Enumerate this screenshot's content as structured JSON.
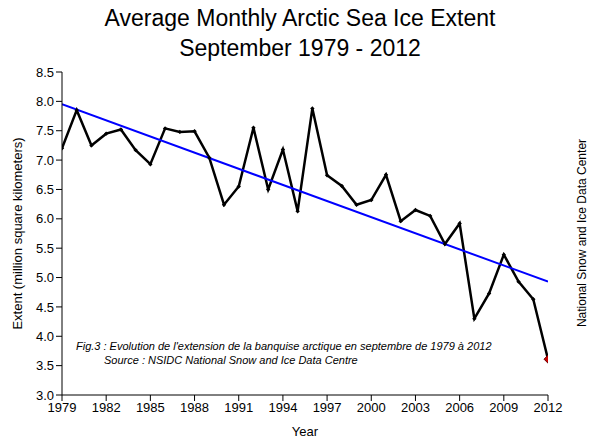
{
  "chart_data": {
    "type": "line",
    "title": "Average Monthly Arctic Sea Ice Extent",
    "subtitle": "September 1979 - 2012",
    "x_label": "Year",
    "y_label": "Extent (million square kilometers)",
    "annotations": [
      "Fig.3 : Evolution de l'extension de la banquise arctique en septembre de 1979 à 2012",
      "Source : NSIDC National Snow and Ice Data Centre",
      "National Snow and Ice Data Center"
    ],
    "x": [
      1979,
      1980,
      1981,
      1982,
      1983,
      1984,
      1985,
      1986,
      1987,
      1988,
      1989,
      1990,
      1991,
      1992,
      1993,
      1994,
      1995,
      1996,
      1997,
      1998,
      1999,
      2000,
      2001,
      2002,
      2003,
      2004,
      2005,
      2006,
      2007,
      2008,
      2009,
      2010,
      2011,
      2012
    ],
    "series": [
      {
        "color": "#000000",
        "marker": "diamond",
        "colors": [
          "#000000",
          "#000000",
          "#000000",
          "#000000",
          "#000000",
          "#000000",
          "#000000",
          "#000000",
          "#000000",
          "#000000",
          "#000000",
          "#000000",
          "#000000",
          "#000000",
          "#000000",
          "#000000",
          "#000000",
          "#000000",
          "#000000",
          "#000000",
          "#000000",
          "#000000",
          "#000000",
          "#000000",
          "#000000",
          "#000000",
          "#000000",
          "#000000",
          "#000000",
          "#000000",
          "#000000",
          "#000000",
          "#000000",
          "#cc0000"
        ],
        "values": [
          7.2,
          7.85,
          7.25,
          7.45,
          7.52,
          7.17,
          6.93,
          7.54,
          7.48,
          7.49,
          7.04,
          6.24,
          6.55,
          7.55,
          6.5,
          7.18,
          6.13,
          7.88,
          6.74,
          6.56,
          6.24,
          6.32,
          6.75,
          5.96,
          6.15,
          6.05,
          5.57,
          5.92,
          4.3,
          4.73,
          5.39,
          4.93,
          4.63,
          3.61
        ]
      },
      {
        "color": "#0000ff",
        "marker": "none",
        "x": [
          1979,
          2012
        ],
        "values": [
          7.95,
          4.93
        ]
      }
    ],
    "xlim": [
      1979,
      2012
    ],
    "xticks": [
      1979,
      1982,
      1985,
      1988,
      1991,
      1994,
      1997,
      2000,
      2003,
      2006,
      2009,
      2012
    ],
    "ylim": [
      3,
      8.5
    ],
    "yticks": [
      {
        "value": 3,
        "label": "3.0"
      },
      3.5,
      {
        "value": 4,
        "label": "4.0"
      },
      4.5,
      {
        "value": 5,
        "label": "5.0"
      },
      5.5,
      {
        "value": 6,
        "label": "6.0"
      },
      6.5,
      {
        "value": 7,
        "label": "7.0"
      },
      7.5,
      {
        "value": 8,
        "label": "8.0"
      },
      8.5
    ],
    "grid": false
  }
}
